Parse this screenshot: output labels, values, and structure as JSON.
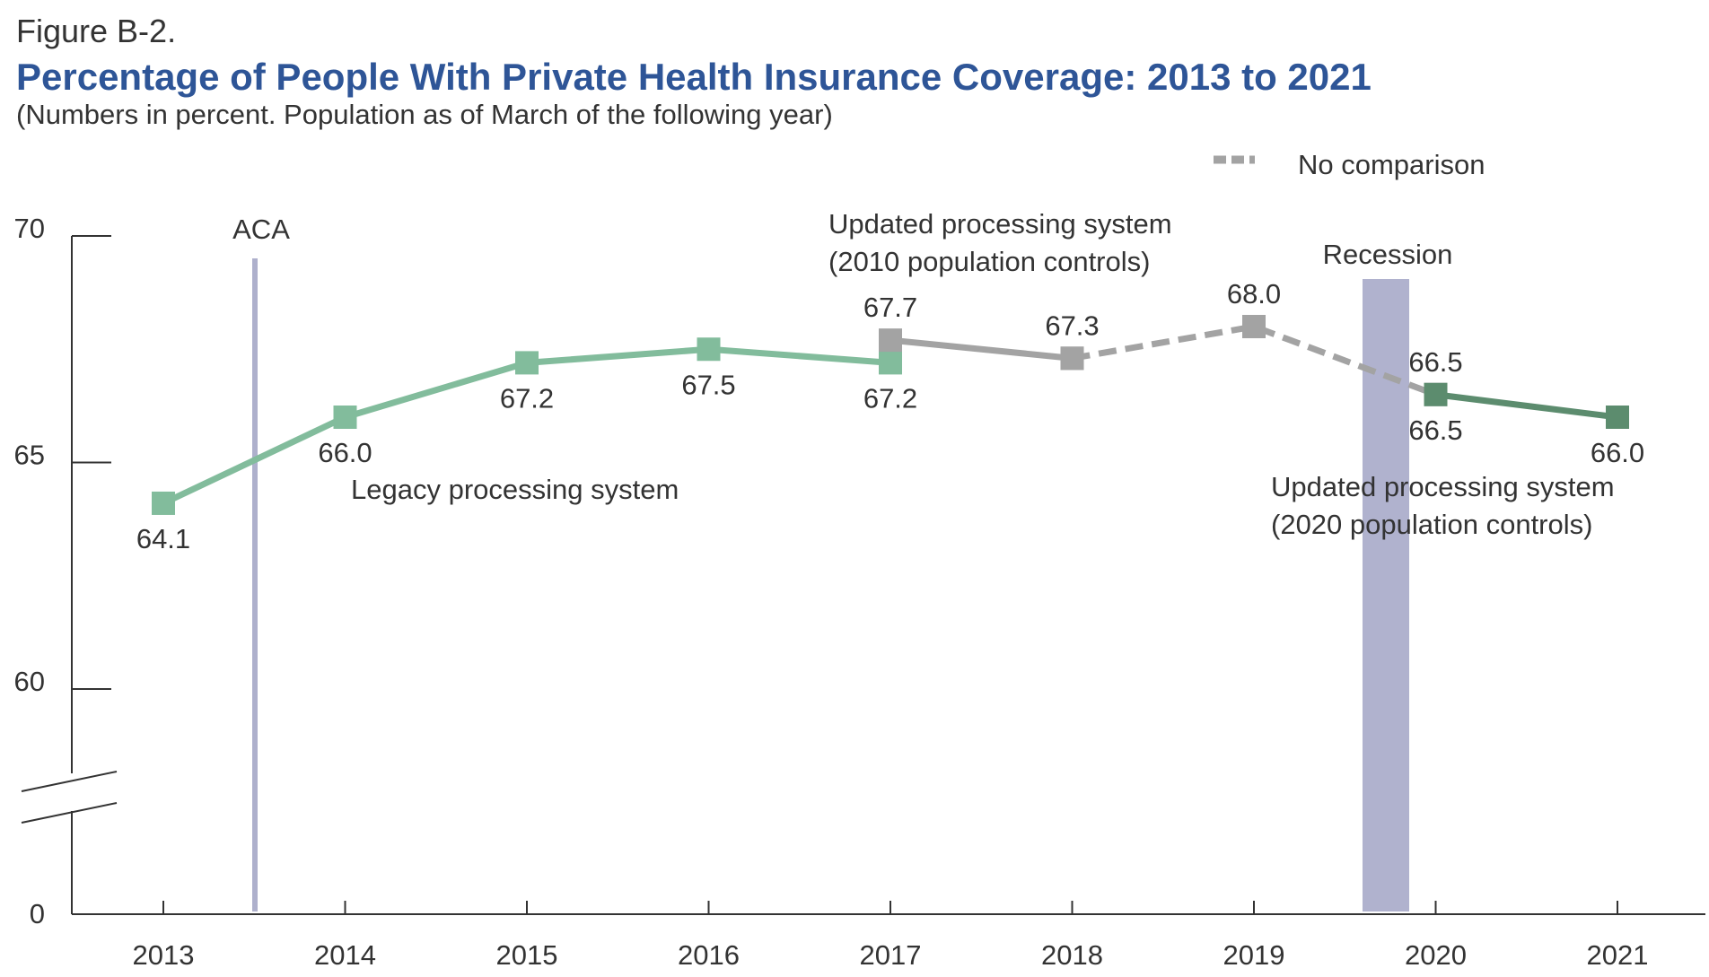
{
  "figure_label": "Figure B-2.",
  "title": "Percentage of People With Private Health Insurance Coverage: 2013 to 2021",
  "subtitle": "(Numbers in percent. Population as of March of the following year)",
  "legend": {
    "dashed_label": "No comparison"
  },
  "annotations": {
    "aca": "ACA",
    "recession": "Recession",
    "legacy": "Legacy processing system",
    "updated_2010_line1": "Updated processing system",
    "updated_2010_line2": "(2010 population controls)",
    "updated_2020_line1": "Updated processing system",
    "updated_2020_line2": "(2020 population controls)"
  },
  "colors": {
    "legacy": "#82bc9c",
    "updated_2010": "#a3a3a3",
    "updated_2020": "#5c8c6e",
    "recession_band": "#b0b2ce",
    "aca_line": "#aeb0cc",
    "title": "#2e5597",
    "axis": "#333333"
  },
  "chart_data": {
    "type": "line",
    "categories": [
      "2013",
      "2014",
      "2015",
      "2016",
      "2017",
      "2018",
      "2019",
      "2020",
      "2021"
    ],
    "y_ticks": [
      "0",
      "60",
      "65",
      "70"
    ],
    "y_axis_break": "between 0 and 60",
    "series": [
      {
        "name": "Legacy processing system",
        "style": "solid",
        "x": [
          "2013",
          "2014",
          "2015",
          "2016",
          "2017"
        ],
        "values": [
          64.1,
          66.0,
          67.2,
          67.5,
          67.2
        ],
        "labels": [
          "64.1",
          "66.0",
          "67.2",
          "67.5",
          "67.2"
        ]
      },
      {
        "name": "Updated processing system (2010 population controls)",
        "style": "solid",
        "x": [
          "2017",
          "2018"
        ],
        "values": [
          67.7,
          67.3
        ],
        "labels": [
          "67.7",
          "67.3"
        ]
      },
      {
        "name": "No comparison",
        "style": "dashed",
        "x": [
          "2018",
          "2019",
          "2020"
        ],
        "values": [
          67.3,
          68.0,
          66.5
        ],
        "labels": [
          "",
          "68.0",
          ""
        ]
      },
      {
        "name": "Updated processing system (2020 population controls)",
        "style": "solid",
        "x": [
          "2020",
          "2021"
        ],
        "values": [
          66.5,
          66.0
        ],
        "labels": [
          "66.5",
          "66.0"
        ]
      }
    ],
    "extra_labels": [
      {
        "x": "2020",
        "value": 66.5,
        "label": "66.5"
      }
    ],
    "events": [
      {
        "label": "ACA",
        "at": "between 2013 and 2014"
      },
      {
        "label": "Recession",
        "at": "2020"
      }
    ]
  }
}
